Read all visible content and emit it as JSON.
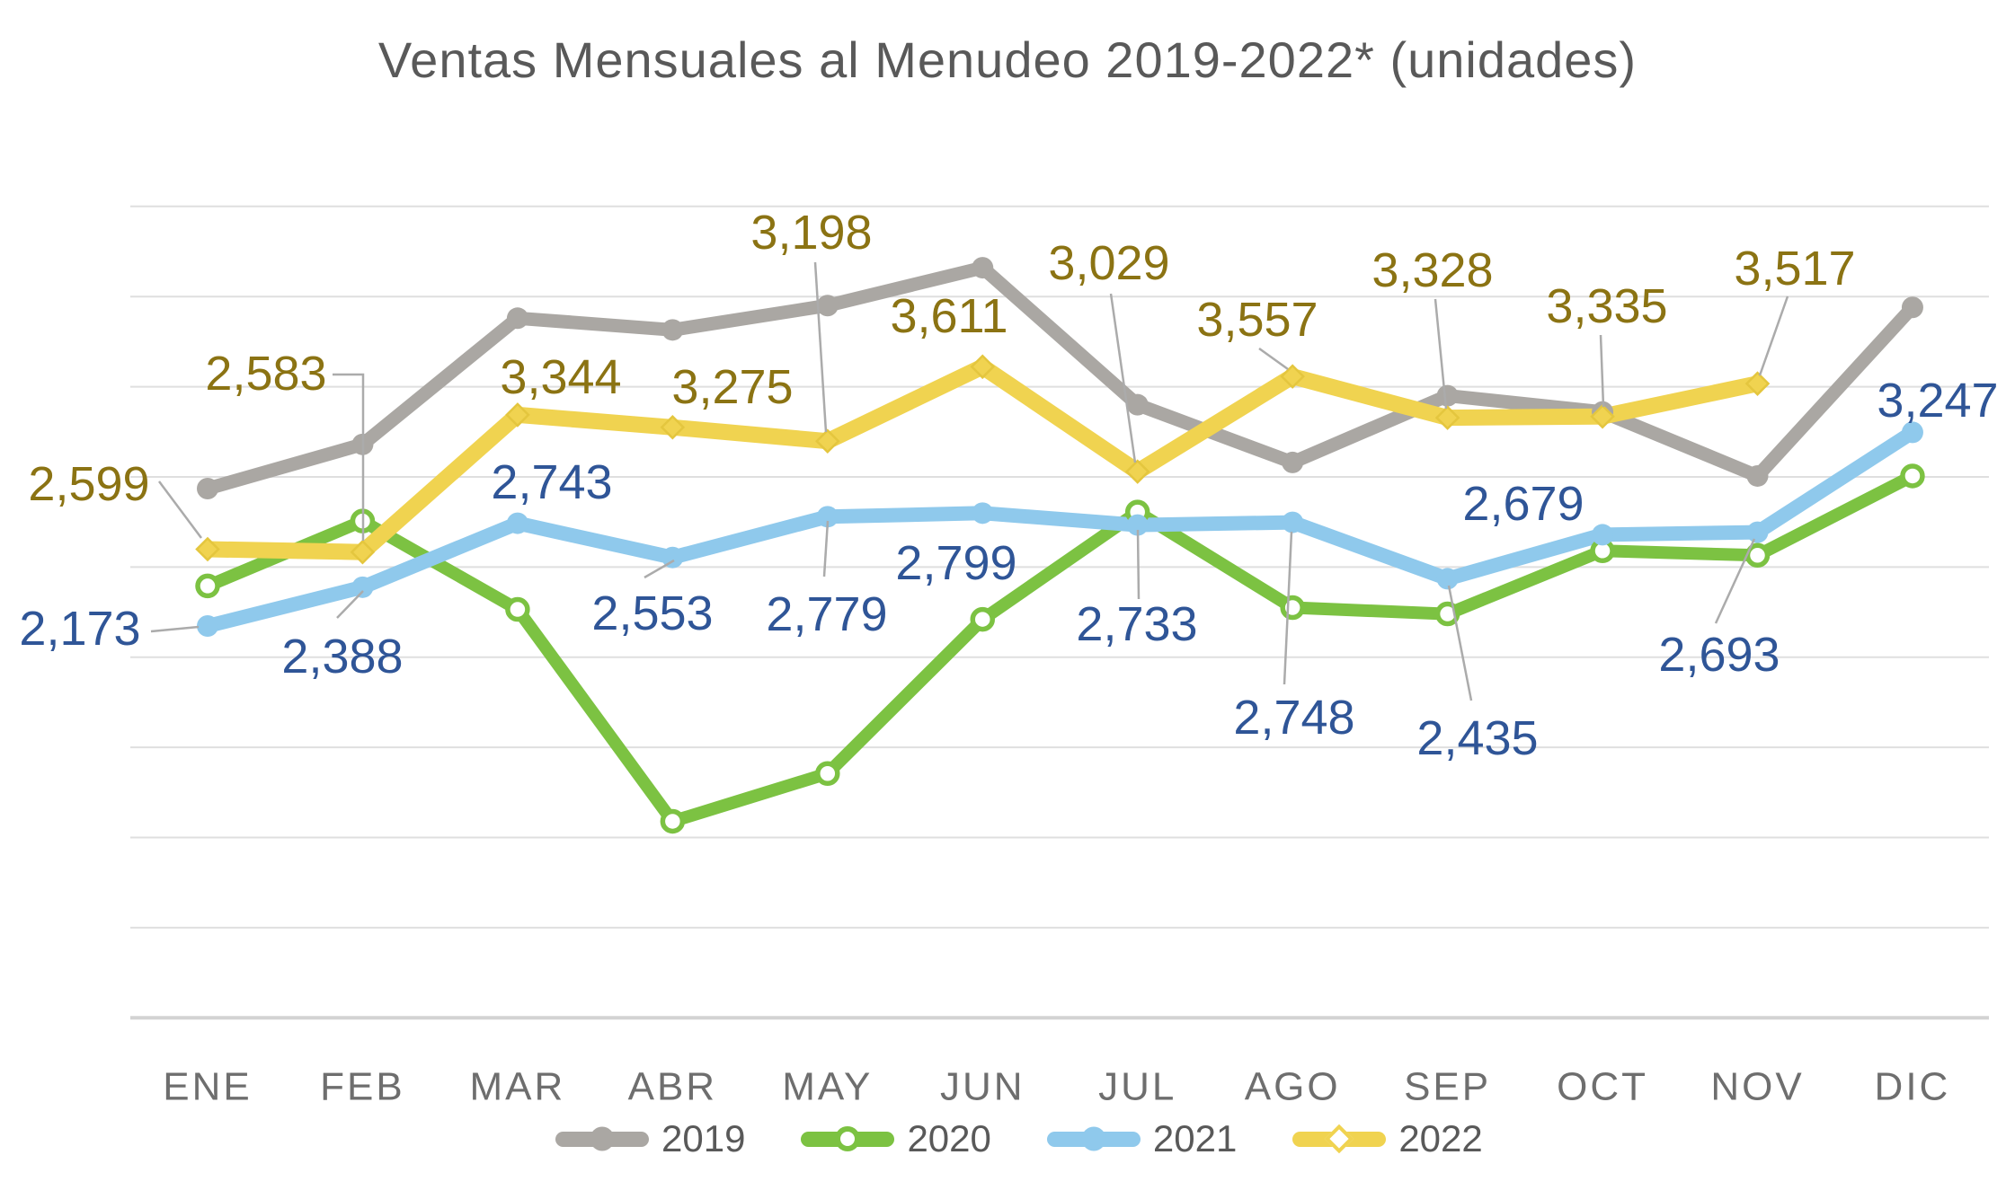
{
  "chart_data": {
    "type": "line",
    "title": "Ventas Mensuales al Menudeo 2019-2022* (unidades)",
    "xlabel": "",
    "ylabel": "",
    "categories": [
      "ENE",
      "FEB",
      "MAR",
      "ABR",
      "MAY",
      "JUN",
      "JUL",
      "AGO",
      "SEP",
      "OCT",
      "NOV",
      "DIC"
    ],
    "series": [
      {
        "name": "2019",
        "color": "#AAA7A3",
        "marker": "circle",
        "data_labels_shown": false,
        "values_estimated_from_pixels": true,
        "values": [
          2935,
          3180,
          3880,
          3815,
          3950,
          4160,
          3400,
          3080,
          3450,
          3360,
          3005,
          3940
        ]
      },
      {
        "name": "2020",
        "color": "#7CC242",
        "marker": "open-circle",
        "data_labels_shown": false,
        "values_estimated_from_pixels": true,
        "values": [
          2395,
          2755,
          2265,
          1090,
          1355,
          2210,
          2805,
          2275,
          2240,
          2590,
          2565,
          3005
        ]
      },
      {
        "name": "2021",
        "color": "#8FC9EC",
        "marker": "circle",
        "data_labels_shown": true,
        "label_color": "#2F5597",
        "values": [
          2173,
          2388,
          2743,
          2553,
          2779,
          2799,
          2733,
          2748,
          2435,
          2679,
          2693,
          3247
        ]
      },
      {
        "name": "2022",
        "color": "#F0D350",
        "marker": "diamond",
        "data_labels_shown": true,
        "label_color": "#8B7313",
        "partial_year_ends_at": "NOV",
        "values": [
          2599,
          2583,
          3344,
          3275,
          3198,
          3611,
          3029,
          3557,
          3328,
          3335,
          3517,
          null
        ]
      }
    ],
    "ylim": [
      0,
      4500
    ],
    "gridline_step": 500,
    "grid": "horizontal",
    "y_axis_labels_shown": false,
    "legend_position": "bottom",
    "legend_labels": [
      "2019",
      "2020",
      "2021",
      "2022"
    ]
  },
  "style": {
    "title_color": "#595959",
    "month_label_color": "#6E6E6E",
    "gridline_color": "#DFDFDF",
    "baseline_color": "#D3D3D3",
    "leader_line_color": "#ABABAB"
  }
}
